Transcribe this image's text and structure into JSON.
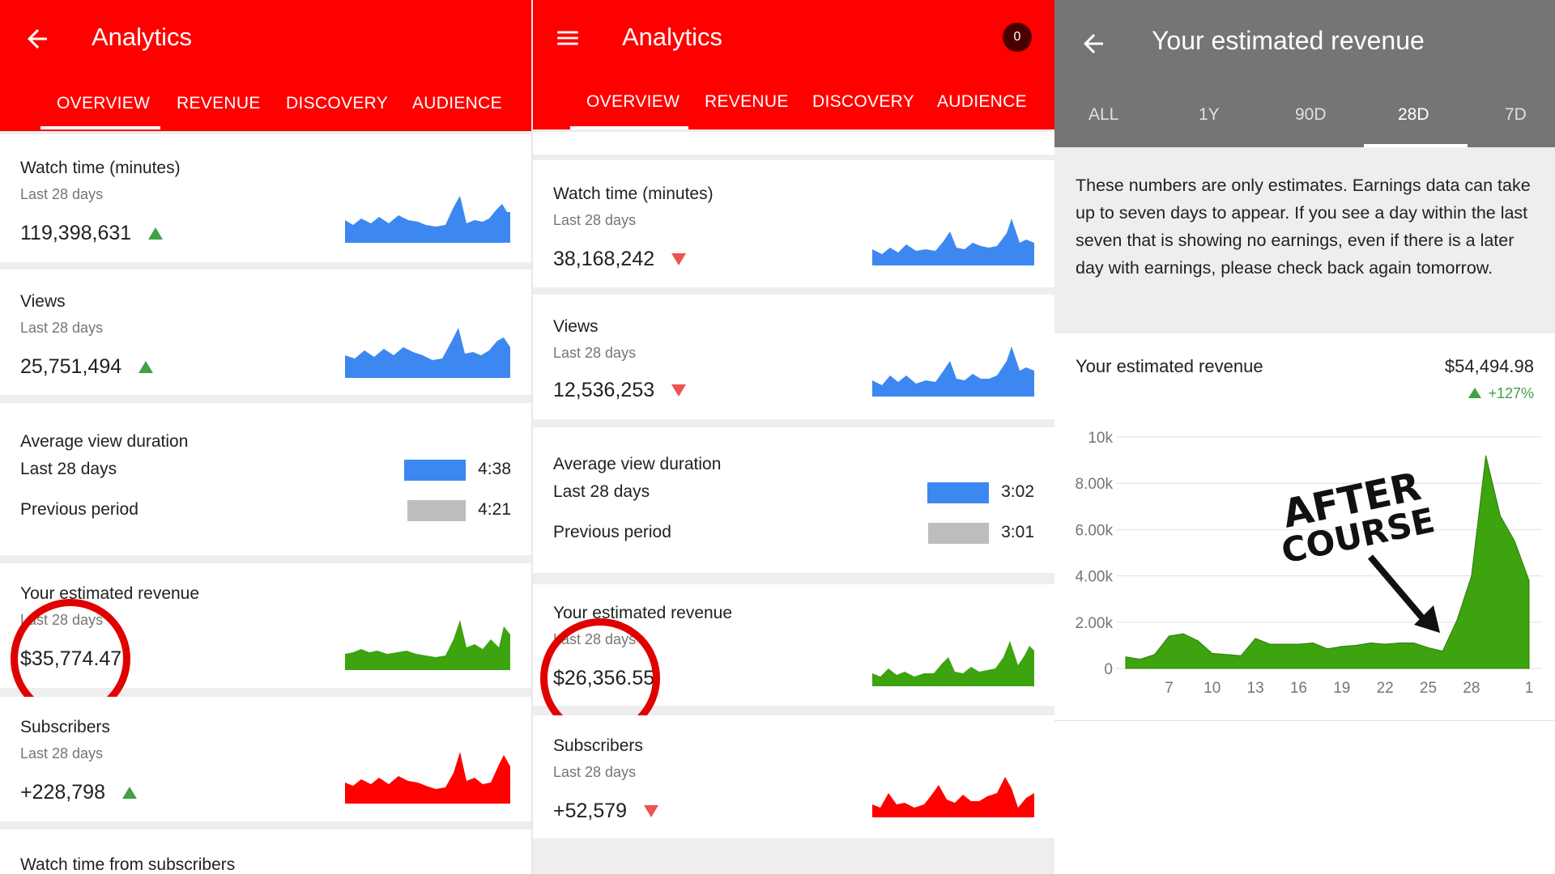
{
  "colors": {
    "youtube_red": "#ff0000",
    "blue": "#3d88f0",
    "green": "#3da30f",
    "red_series": "#ff0000",
    "gray_header": "#757575",
    "ring": "#e10000"
  },
  "panel1": {
    "header": {
      "title": "Analytics",
      "back_icon": "arrow-left-icon"
    },
    "tabs": [
      "OVERVIEW",
      "REVENUE",
      "DISCOVERY",
      "AUDIENCE"
    ],
    "cards": {
      "watch_time": {
        "title": "Watch time (minutes)",
        "period": "Last 28 days",
        "value": "119,398,631",
        "trend": "up"
      },
      "views": {
        "title": "Views",
        "period": "Last 28 days",
        "value": "25,751,494",
        "trend": "up"
      },
      "avg_duration": {
        "title": "Average view duration",
        "current_label": "Last 28 days",
        "current_value": "4:38",
        "previous_label": "Previous period",
        "previous_value": "4:21"
      },
      "revenue": {
        "title": "Your estimated revenue",
        "period": "Last 28 days",
        "value": "$35,774.47"
      },
      "subscribers": {
        "title": "Subscribers",
        "period": "Last 28 days",
        "value": "+228,798",
        "trend": "up"
      },
      "watch_subs": {
        "title": "Watch time from subscribers"
      }
    }
  },
  "panel2": {
    "header": {
      "title": "Analytics",
      "menu_icon": "hamburger-menu-icon",
      "notification_count": "0"
    },
    "tabs": [
      "OVERVIEW",
      "REVENUE",
      "DISCOVERY",
      "AUDIENCE"
    ],
    "cards": {
      "watch_time": {
        "title": "Watch time (minutes)",
        "period": "Last 28 days",
        "value": "38,168,242",
        "trend": "down"
      },
      "views": {
        "title": "Views",
        "period": "Last 28 days",
        "value": "12,536,253",
        "trend": "down"
      },
      "avg_duration": {
        "title": "Average view duration",
        "current_label": "Last 28 days",
        "current_value": "3:02",
        "previous_label": "Previous period",
        "previous_value": "3:01"
      },
      "revenue": {
        "title": "Your estimated revenue",
        "period": "Last 28 days",
        "value": "$26,356.55"
      },
      "subscribers": {
        "title": "Subscribers",
        "period": "Last 28 days",
        "value": "+52,579",
        "trend": "down"
      }
    }
  },
  "panel3": {
    "header": {
      "title": "Your estimated revenue",
      "back_icon": "arrow-left-icon"
    },
    "tabs": [
      "ALL",
      "1Y",
      "90D",
      "28D",
      "7D"
    ],
    "selected_tab": "28D",
    "disclaimer": "These numbers are only estimates. Earnings data can take up to seven days to appear. If you see a day within the last seven that is showing no earnings, even if there is a later day with earnings, please check back again tomorrow.",
    "revenue_title": "Your estimated revenue",
    "revenue_total": "$54,494.98",
    "revenue_change": "+127%",
    "annotation_line1": "AFTER",
    "annotation_line2": "COURSE"
  },
  "chart_data": {
    "type": "area",
    "title": "",
    "xlabel": "",
    "ylabel": "",
    "y_ticks": [
      "0",
      "2.00k",
      "4.00k",
      "6.00k",
      "8.00k",
      "10k"
    ],
    "ylim": [
      0,
      10000
    ],
    "x_ticks": [
      "7",
      "10",
      "13",
      "16",
      "19",
      "22",
      "25",
      "28",
      "1"
    ],
    "x": [
      4,
      5,
      6,
      7,
      8,
      9,
      10,
      11,
      12,
      13,
      14,
      15,
      16,
      17,
      18,
      19,
      20,
      21,
      22,
      23,
      24,
      25,
      26,
      27,
      28,
      29,
      30,
      31,
      1
    ],
    "values": [
      500,
      400,
      600,
      1400,
      1500,
      1200,
      650,
      600,
      550,
      1300,
      1050,
      1050,
      1050,
      1100,
      850,
      950,
      1000,
      1100,
      1050,
      1100,
      1100,
      900,
      750,
      2100,
      4000,
      9200,
      6600,
      5500,
      3800
    ],
    "series": [
      {
        "values": [
          500,
          400,
          600,
          1400,
          1500,
          1200,
          650,
          600,
          550,
          1300,
          1050,
          1050,
          1050,
          1100,
          850,
          950,
          1000,
          1100,
          1050,
          1100,
          1100,
          900,
          750,
          2100,
          4000,
          9200,
          6600,
          5500,
          3800
        ]
      }
    ],
    "grid": true,
    "legend": "none"
  }
}
